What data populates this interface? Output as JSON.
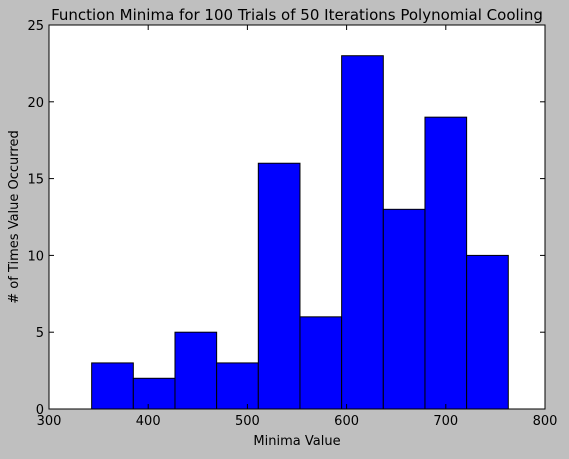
{
  "chart_data": {
    "type": "bar",
    "title": "Function Minima for 100 Trials of 50 Iterations Polynomial Cooling",
    "xlabel": "Minima Value",
    "ylabel": "# of Times Value Occurred",
    "xlim": [
      300,
      800
    ],
    "ylim": [
      0,
      25
    ],
    "xticks": [
      300,
      400,
      500,
      600,
      700,
      800
    ],
    "yticks": [
      0,
      5,
      10,
      15,
      20,
      25
    ],
    "bin_edges": [
      343,
      385,
      427,
      469,
      511,
      553,
      595,
      637,
      679,
      721,
      763
    ],
    "values": [
      3,
      2,
      5,
      3,
      16,
      6,
      23,
      13,
      19,
      10
    ],
    "bar_color": "#0000ff",
    "edge_color": "#000000",
    "plot_background": "#ffffff",
    "figure_background": "#bfbfbf",
    "grid": false,
    "legend": false
  }
}
